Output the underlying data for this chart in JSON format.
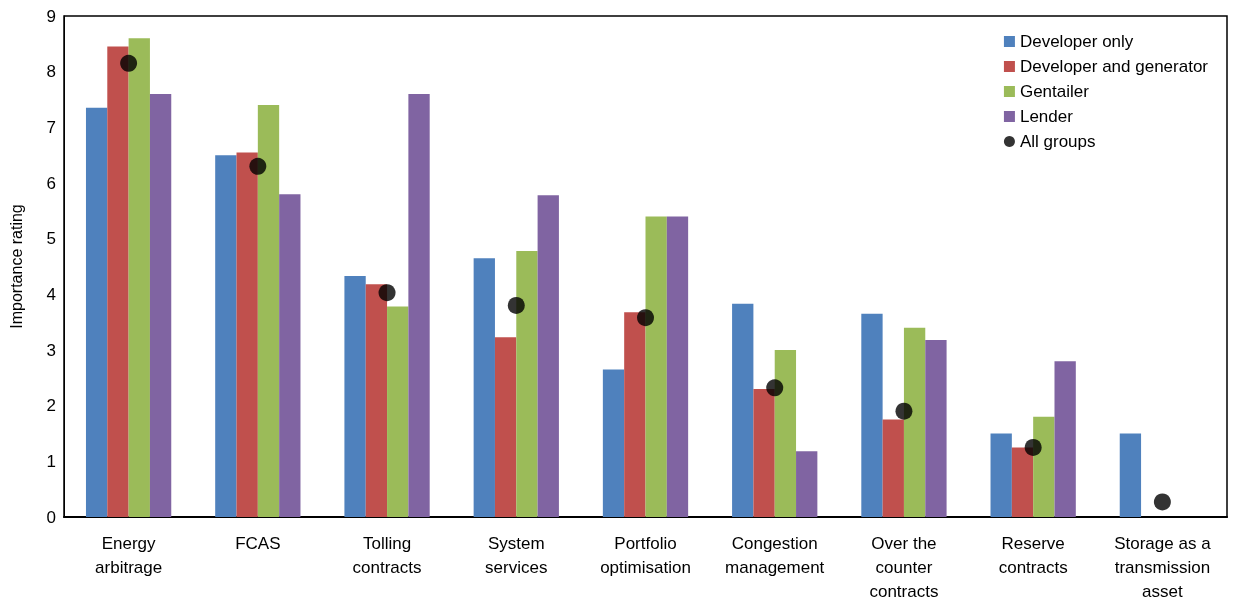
{
  "chart_data": {
    "type": "bar",
    "ylabel": "Importance rating",
    "categories": [
      "Energy\narbitrage",
      "FCAS",
      "Tolling\ncontracts",
      "System\nservices",
      "Portfolio\noptimisation",
      "Congestion\nmanagement",
      "Over the\ncounter\ncontracts",
      "Reserve\ncontracts",
      "Storage as a\ntransmission\nasset"
    ],
    "series": [
      {
        "name": "Developer only",
        "color": "#4f81bd",
        "values": [
          7.35,
          6.5,
          4.33,
          4.65,
          2.65,
          3.83,
          3.65,
          1.5,
          1.5
        ]
      },
      {
        "name": "Developer and generator",
        "color": "#c0504d",
        "values": [
          8.45,
          6.55,
          4.18,
          3.23,
          3.68,
          2.3,
          1.75,
          1.25,
          0
        ]
      },
      {
        "name": "Gentailer",
        "color": "#9bbb59",
        "values": [
          8.6,
          7.4,
          3.78,
          4.78,
          5.4,
          3.0,
          3.4,
          1.8,
          0
        ]
      },
      {
        "name": "Lender",
        "color": "#8064a2",
        "values": [
          7.6,
          5.8,
          7.6,
          5.78,
          5.4,
          1.18,
          3.18,
          2.8,
          0
        ]
      },
      {
        "name": "All groups",
        "type": "scatter",
        "color": "#000000",
        "marker": "circle",
        "values": [
          8.15,
          6.3,
          4.03,
          3.8,
          3.58,
          2.32,
          1.9,
          1.25,
          0.27
        ]
      }
    ],
    "ylim": [
      0,
      9
    ],
    "yticks": [
      0,
      1,
      2,
      3,
      4,
      5,
      6,
      7,
      8,
      9
    ],
    "grid": false,
    "legend": "top right"
  }
}
